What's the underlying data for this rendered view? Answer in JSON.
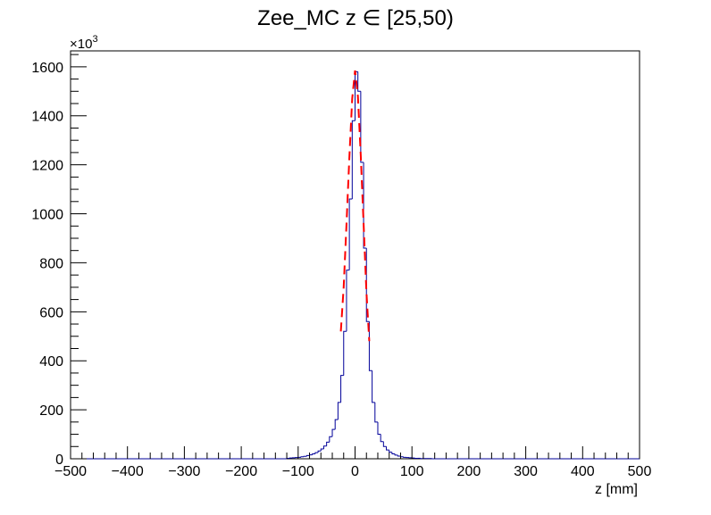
{
  "chart_data": {
    "type": "histogram",
    "title": "Zee_MC z  ∈ [25,50)",
    "xlabel": "z [mm]",
    "ylabel": "",
    "y_multiplier_label": "×10",
    "y_multiplier_exp": "3",
    "xlim": [
      -500,
      500
    ],
    "ylim": [
      0,
      1665
    ],
    "x_ticks": [
      -500,
      -400,
      -300,
      -200,
      -100,
      0,
      100,
      200,
      300,
      400,
      500
    ],
    "x_tick_labels": [
      "−500",
      "−400",
      "−300",
      "−200",
      "−100",
      "0",
      "100",
      "200",
      "300",
      "400",
      "500"
    ],
    "y_ticks": [
      0,
      200,
      400,
      600,
      800,
      1000,
      1200,
      1400,
      1600
    ],
    "y_tick_labels": [
      "0",
      "200",
      "400",
      "600",
      "800",
      "1000",
      "1200",
      "1400",
      "1600"
    ],
    "grid": false,
    "legend": "none",
    "colors": {
      "histogram": "#000099",
      "fit": "#ff0000",
      "frame": "#000000"
    },
    "histogram": {
      "bin_width": 5,
      "bins_low_edge": [
        -120,
        -115,
        -110,
        -105,
        -100,
        -95,
        -90,
        -85,
        -80,
        -75,
        -70,
        -65,
        -60,
        -55,
        -50,
        -45,
        -40,
        -35,
        -30,
        -25,
        -20,
        -15,
        -10,
        -5,
        0,
        5,
        10,
        15,
        20,
        25,
        30,
        35,
        40,
        45,
        50,
        55,
        60,
        65,
        70,
        75,
        80,
        85,
        90,
        95,
        100,
        105,
        110,
        115,
        120,
        125,
        130
      ],
      "values": [
        2,
        3,
        4,
        5,
        6,
        8,
        10,
        13,
        16,
        20,
        25,
        32,
        40,
        52,
        68,
        90,
        120,
        160,
        230,
        340,
        520,
        770,
        1060,
        1380,
        1580,
        1500,
        1210,
        860,
        560,
        360,
        230,
        150,
        100,
        70,
        50,
        36,
        27,
        20,
        15,
        11,
        8,
        6,
        5,
        4,
        3,
        2,
        2,
        1,
        1,
        1,
        1
      ]
    },
    "fit": {
      "x": [
        -25,
        -20,
        -15,
        -10,
        -5,
        0,
        5,
        10,
        15,
        20,
        25
      ],
      "y": [
        520,
        700,
        960,
        1230,
        1470,
        1585,
        1480,
        1240,
        960,
        680,
        480
      ]
    }
  }
}
